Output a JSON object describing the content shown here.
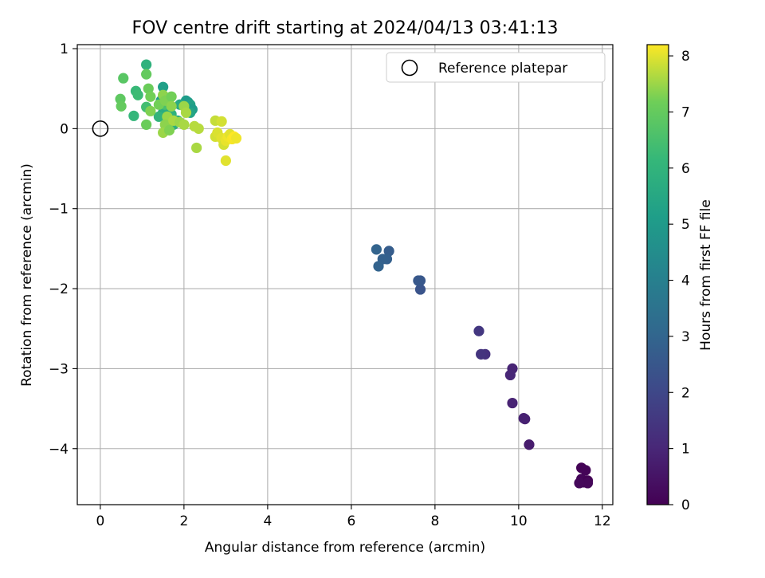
{
  "chart_data": {
    "type": "scatter",
    "title": "FOV centre drift starting at 2024/04/13 03:41:13",
    "xlabel": "Angular distance from reference (arcmin)",
    "ylabel": "Rotation from reference (arcmin)",
    "xlim": [
      -0.55,
      12.25
    ],
    "ylim": [
      -4.7,
      1.05
    ],
    "xticks": [
      0,
      2,
      4,
      6,
      8,
      10,
      12
    ],
    "yticks": [
      1,
      0,
      -1,
      -2,
      -3,
      -4
    ],
    "xtick_labels": [
      "0",
      "2",
      "4",
      "6",
      "8",
      "10",
      "12"
    ],
    "ytick_labels": [
      "1",
      "0",
      "−1",
      "−2",
      "−3",
      "−4"
    ],
    "grid": true,
    "colormap": "viridis",
    "colorbar": {
      "label": "Hours from first FF file",
      "range": [
        0,
        8.2
      ],
      "ticks": [
        0,
        1,
        2,
        3,
        4,
        5,
        6,
        7,
        8
      ],
      "tick_labels": [
        "0",
        "1",
        "2",
        "3",
        "4",
        "5",
        "6",
        "7",
        "8"
      ]
    },
    "legend": {
      "position": "top-right",
      "entries": [
        {
          "label": "Reference platepar",
          "marker": "open-circle"
        }
      ]
    },
    "reference_point": {
      "x": 0,
      "y": 0
    },
    "points": [
      {
        "x": 11.5,
        "y": -4.24,
        "t": 0.05
      },
      {
        "x": 11.6,
        "y": -4.27,
        "t": 0.08
      },
      {
        "x": 11.5,
        "y": -4.38,
        "t": 0.1
      },
      {
        "x": 11.55,
        "y": -4.42,
        "t": 0.12
      },
      {
        "x": 11.65,
        "y": -4.4,
        "t": 0.02
      },
      {
        "x": 11.65,
        "y": -4.43,
        "t": 0.15
      },
      {
        "x": 11.45,
        "y": -4.43,
        "t": 0.18
      },
      {
        "x": 10.25,
        "y": -3.95,
        "t": 0.7
      },
      {
        "x": 10.15,
        "y": -3.63,
        "t": 0.8
      },
      {
        "x": 10.12,
        "y": -3.62,
        "t": 0.85
      },
      {
        "x": 9.85,
        "y": -3.43,
        "t": 0.9
      },
      {
        "x": 9.85,
        "y": -3.0,
        "t": 0.95
      },
      {
        "x": 9.8,
        "y": -3.08,
        "t": 1.0
      },
      {
        "x": 9.2,
        "y": -2.82,
        "t": 1.3
      },
      {
        "x": 9.1,
        "y": -2.82,
        "t": 1.4
      },
      {
        "x": 9.05,
        "y": -2.53,
        "t": 1.5
      },
      {
        "x": 7.65,
        "y": -2.01,
        "t": 2.4
      },
      {
        "x": 7.65,
        "y": -1.9,
        "t": 2.5
      },
      {
        "x": 7.6,
        "y": -1.9,
        "t": 2.55
      },
      {
        "x": 6.9,
        "y": -1.53,
        "t": 2.7
      },
      {
        "x": 6.85,
        "y": -1.63,
        "t": 2.8
      },
      {
        "x": 6.75,
        "y": -1.63,
        "t": 2.85
      },
      {
        "x": 6.65,
        "y": -1.72,
        "t": 2.9
      },
      {
        "x": 6.6,
        "y": -1.51,
        "t": 2.95
      },
      {
        "x": 1.5,
        "y": 0.52,
        "t": 5.2
      },
      {
        "x": 1.45,
        "y": 0.35,
        "t": 5.0
      },
      {
        "x": 2.05,
        "y": 0.35,
        "t": 5.1
      },
      {
        "x": 2.1,
        "y": 0.33,
        "t": 5.0
      },
      {
        "x": 2.15,
        "y": 0.3,
        "t": 5.3
      },
      {
        "x": 2.2,
        "y": 0.24,
        "t": 5.1
      },
      {
        "x": 2.15,
        "y": 0.2,
        "t": 5.4
      },
      {
        "x": 1.9,
        "y": 0.3,
        "t": 5.6
      },
      {
        "x": 1.5,
        "y": 0.2,
        "t": 5.5
      },
      {
        "x": 1.55,
        "y": 0.25,
        "t": 5.7
      },
      {
        "x": 1.6,
        "y": 0.12,
        "t": 5.8
      },
      {
        "x": 1.7,
        "y": 0.18,
        "t": 5.9
      },
      {
        "x": 1.85,
        "y": 0.1,
        "t": 5.6
      },
      {
        "x": 1.75,
        "y": 0.05,
        "t": 5.8
      },
      {
        "x": 1.1,
        "y": 0.8,
        "t": 5.9
      },
      {
        "x": 1.4,
        "y": 0.15,
        "t": 6.0
      },
      {
        "x": 0.8,
        "y": 0.16,
        "t": 6.1
      },
      {
        "x": 0.85,
        "y": 0.47,
        "t": 6.2
      },
      {
        "x": 0.9,
        "y": 0.42,
        "t": 6.3
      },
      {
        "x": 1.1,
        "y": 0.27,
        "t": 6.4
      },
      {
        "x": 1.55,
        "y": 0.3,
        "t": 6.5
      },
      {
        "x": 1.6,
        "y": 0.0,
        "t": 6.6
      },
      {
        "x": 0.55,
        "y": 0.63,
        "t": 6.8
      },
      {
        "x": 0.48,
        "y": 0.37,
        "t": 6.9
      },
      {
        "x": 0.5,
        "y": 0.28,
        "t": 7.0
      },
      {
        "x": 1.1,
        "y": 0.68,
        "t": 7.0
      },
      {
        "x": 1.15,
        "y": 0.5,
        "t": 7.1
      },
      {
        "x": 1.2,
        "y": 0.4,
        "t": 7.2
      },
      {
        "x": 1.1,
        "y": 0.05,
        "t": 7.1
      },
      {
        "x": 1.2,
        "y": 0.22,
        "t": 7.3
      },
      {
        "x": 1.4,
        "y": 0.3,
        "t": 7.2
      },
      {
        "x": 1.5,
        "y": 0.42,
        "t": 7.4
      },
      {
        "x": 1.55,
        "y": 0.35,
        "t": 7.3
      },
      {
        "x": 1.7,
        "y": 0.4,
        "t": 7.2
      },
      {
        "x": 1.7,
        "y": 0.28,
        "t": 7.4
      },
      {
        "x": 1.6,
        "y": 0.15,
        "t": 7.5
      },
      {
        "x": 1.55,
        "y": 0.05,
        "t": 7.4
      },
      {
        "x": 1.5,
        "y": -0.05,
        "t": 7.5
      },
      {
        "x": 1.65,
        "y": -0.02,
        "t": 7.3
      },
      {
        "x": 1.75,
        "y": 0.1,
        "t": 7.6
      },
      {
        "x": 1.9,
        "y": 0.08,
        "t": 7.5
      },
      {
        "x": 2.0,
        "y": 0.05,
        "t": 7.6
      },
      {
        "x": 2.0,
        "y": 0.28,
        "t": 7.5
      },
      {
        "x": 2.05,
        "y": 0.2,
        "t": 7.6
      },
      {
        "x": 2.25,
        "y": 0.03,
        "t": 7.7
      },
      {
        "x": 2.35,
        "y": 0.0,
        "t": 7.7
      },
      {
        "x": 2.3,
        "y": -0.24,
        "t": 7.6
      },
      {
        "x": 2.75,
        "y": 0.1,
        "t": 7.8
      },
      {
        "x": 2.9,
        "y": 0.09,
        "t": 7.9
      },
      {
        "x": 2.75,
        "y": -0.1,
        "t": 7.9
      },
      {
        "x": 2.8,
        "y": -0.05,
        "t": 7.95
      },
      {
        "x": 2.9,
        "y": -0.12,
        "t": 8.0
      },
      {
        "x": 2.95,
        "y": -0.2,
        "t": 7.9
      },
      {
        "x": 3.0,
        "y": -0.15,
        "t": 8.05
      },
      {
        "x": 3.05,
        "y": -0.1,
        "t": 8.1
      },
      {
        "x": 3.1,
        "y": -0.07,
        "t": 8.0
      },
      {
        "x": 3.15,
        "y": -0.13,
        "t": 8.15
      },
      {
        "x": 3.2,
        "y": -0.1,
        "t": 8.2
      },
      {
        "x": 3.25,
        "y": -0.12,
        "t": 8.1
      },
      {
        "x": 3.0,
        "y": -0.4,
        "t": 8.0
      }
    ]
  }
}
